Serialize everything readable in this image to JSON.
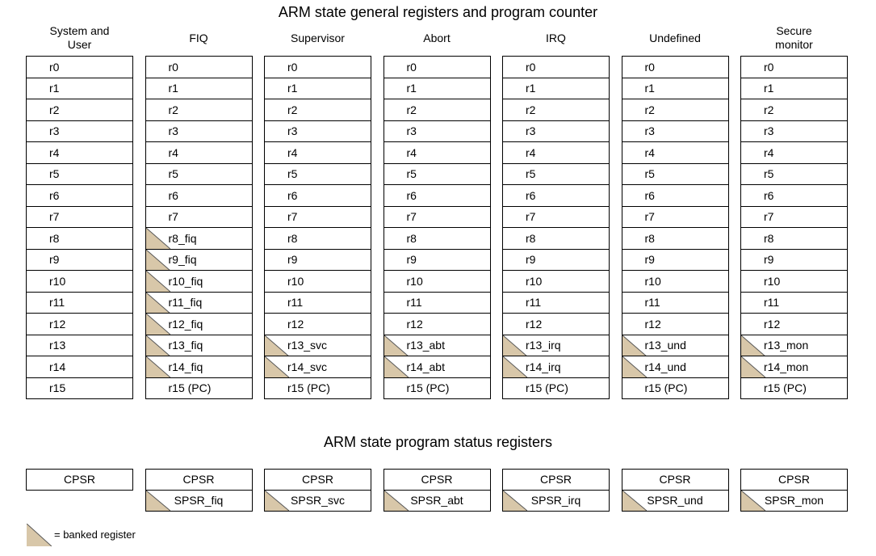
{
  "title": "ARM state general registers and program counter",
  "psr_title": "ARM state program status registers",
  "colors": {
    "banked_fill": "#d8c7a9",
    "line": "#000000",
    "diagonal": "#555555"
  },
  "columns": [
    {
      "header": [
        "System and",
        "User"
      ],
      "registers": [
        {
          "label": "r0"
        },
        {
          "label": "r1"
        },
        {
          "label": "r2"
        },
        {
          "label": "r3"
        },
        {
          "label": "r4"
        },
        {
          "label": "r5"
        },
        {
          "label": "r6"
        },
        {
          "label": "r7"
        },
        {
          "label": "r8"
        },
        {
          "label": "r9"
        },
        {
          "label": "r10"
        },
        {
          "label": "r11"
        },
        {
          "label": "r12"
        },
        {
          "label": "r13"
        },
        {
          "label": "r14"
        },
        {
          "label": "r15"
        }
      ]
    },
    {
      "header": [
        "FIQ"
      ],
      "registers": [
        {
          "label": "r0"
        },
        {
          "label": "r1"
        },
        {
          "label": "r2"
        },
        {
          "label": "r3"
        },
        {
          "label": "r4"
        },
        {
          "label": "r5"
        },
        {
          "label": "r6"
        },
        {
          "label": "r7"
        },
        {
          "label": "r8_fiq",
          "banked": true
        },
        {
          "label": "r9_fiq",
          "banked": true
        },
        {
          "label": "r10_fiq",
          "banked": true
        },
        {
          "label": "r11_fiq",
          "banked": true
        },
        {
          "label": "r12_fiq",
          "banked": true
        },
        {
          "label": "r13_fiq",
          "banked": true
        },
        {
          "label": "r14_fiq",
          "banked": true
        },
        {
          "label": "r15 (PC)"
        }
      ]
    },
    {
      "header": [
        "Supervisor"
      ],
      "registers": [
        {
          "label": "r0"
        },
        {
          "label": "r1"
        },
        {
          "label": "r2"
        },
        {
          "label": "r3"
        },
        {
          "label": "r4"
        },
        {
          "label": "r5"
        },
        {
          "label": "r6"
        },
        {
          "label": "r7"
        },
        {
          "label": "r8"
        },
        {
          "label": "r9"
        },
        {
          "label": "r10"
        },
        {
          "label": "r11"
        },
        {
          "label": "r12"
        },
        {
          "label": "r13_svc",
          "banked": true
        },
        {
          "label": "r14_svc",
          "banked": true
        },
        {
          "label": "r15 (PC)"
        }
      ]
    },
    {
      "header": [
        "Abort"
      ],
      "registers": [
        {
          "label": "r0"
        },
        {
          "label": "r1"
        },
        {
          "label": "r2"
        },
        {
          "label": "r3"
        },
        {
          "label": "r4"
        },
        {
          "label": "r5"
        },
        {
          "label": "r6"
        },
        {
          "label": "r7"
        },
        {
          "label": "r8"
        },
        {
          "label": "r9"
        },
        {
          "label": "r10"
        },
        {
          "label": "r11"
        },
        {
          "label": "r12"
        },
        {
          "label": "r13_abt",
          "banked": true
        },
        {
          "label": "r14_abt",
          "banked": true
        },
        {
          "label": "r15 (PC)"
        }
      ]
    },
    {
      "header": [
        "IRQ"
      ],
      "registers": [
        {
          "label": "r0"
        },
        {
          "label": "r1"
        },
        {
          "label": "r2"
        },
        {
          "label": "r3"
        },
        {
          "label": "r4"
        },
        {
          "label": "r5"
        },
        {
          "label": "r6"
        },
        {
          "label": "r7"
        },
        {
          "label": "r8"
        },
        {
          "label": "r9"
        },
        {
          "label": "r10"
        },
        {
          "label": "r11"
        },
        {
          "label": "r12"
        },
        {
          "label": "r13_irq",
          "banked": true
        },
        {
          "label": "r14_irq",
          "banked": true
        },
        {
          "label": "r15 (PC)"
        }
      ]
    },
    {
      "header": [
        "Undefined"
      ],
      "registers": [
        {
          "label": "r0"
        },
        {
          "label": "r1"
        },
        {
          "label": "r2"
        },
        {
          "label": "r3"
        },
        {
          "label": "r4"
        },
        {
          "label": "r5"
        },
        {
          "label": "r6"
        },
        {
          "label": "r7"
        },
        {
          "label": "r8"
        },
        {
          "label": "r9"
        },
        {
          "label": "r10"
        },
        {
          "label": "r11"
        },
        {
          "label": "r12"
        },
        {
          "label": "r13_und",
          "banked": true
        },
        {
          "label": "r14_und",
          "banked": true
        },
        {
          "label": "r15 (PC)"
        }
      ]
    },
    {
      "header": [
        "Secure",
        "monitor"
      ],
      "registers": [
        {
          "label": "r0"
        },
        {
          "label": "r1"
        },
        {
          "label": "r2"
        },
        {
          "label": "r3"
        },
        {
          "label": "r4"
        },
        {
          "label": "r5"
        },
        {
          "label": "r6"
        },
        {
          "label": "r7"
        },
        {
          "label": "r8"
        },
        {
          "label": "r9"
        },
        {
          "label": "r10"
        },
        {
          "label": "r11"
        },
        {
          "label": "r12"
        },
        {
          "label": "r13_mon",
          "banked": true
        },
        {
          "label": "r14_mon",
          "banked": true
        },
        {
          "label": "r15 (PC)"
        }
      ]
    }
  ],
  "psr": [
    {
      "cpsr": "CPSR"
    },
    {
      "cpsr": "CPSR",
      "spsr": "SPSR_fiq"
    },
    {
      "cpsr": "CPSR",
      "spsr": "SPSR_svc"
    },
    {
      "cpsr": "CPSR",
      "spsr": "SPSR_abt"
    },
    {
      "cpsr": "CPSR",
      "spsr": "SPSR_irq"
    },
    {
      "cpsr": "CPSR",
      "spsr": "SPSR_und"
    },
    {
      "cpsr": "CPSR",
      "spsr": "SPSR_mon"
    }
  ],
  "legend": {
    "label": "= banked register",
    "icon": "banked-triangle"
  }
}
